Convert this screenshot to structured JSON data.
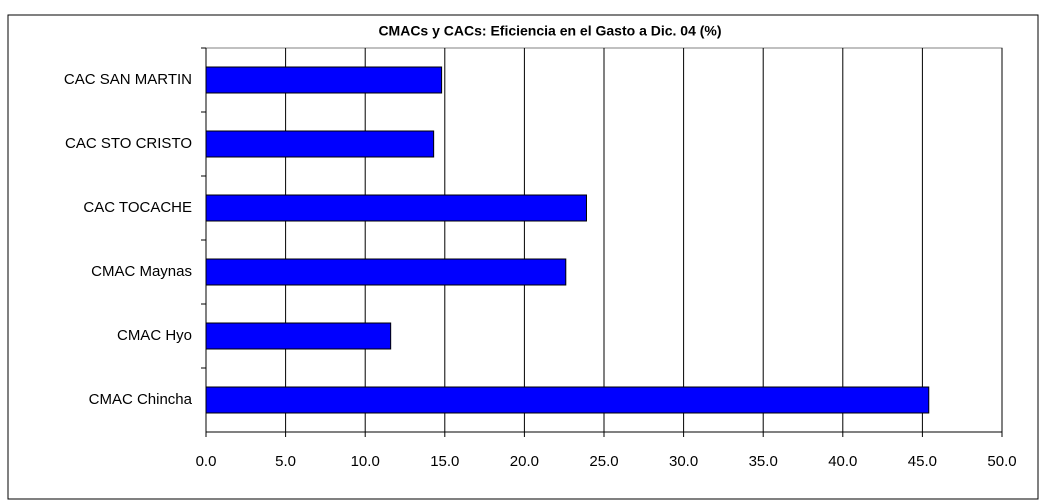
{
  "chart_data": {
    "type": "bar",
    "orientation": "horizontal",
    "title": "CMACs y CACs: Eficiencia en el Gasto a  Dic. 04 (%)",
    "categories": [
      "CAC SAN MARTIN",
      "CAC STO CRISTO",
      "CAC TOCACHE",
      "CMAC Maynas",
      "CMAC Hyo",
      "CMAC Chincha"
    ],
    "values": [
      14.8,
      14.3,
      23.9,
      22.6,
      11.6,
      45.4
    ],
    "color": "#0000ff",
    "xlim": [
      0,
      50
    ],
    "xticks": [
      {
        "value": 0,
        "label": "0.0"
      },
      {
        "value": 5,
        "label": "5.0"
      },
      {
        "value": 10,
        "label": "10.0"
      },
      {
        "value": 15,
        "label": "15.0"
      },
      {
        "value": 20,
        "label": "20.0"
      },
      {
        "value": 25,
        "label": "25.0"
      },
      {
        "value": 30,
        "label": "30.0"
      },
      {
        "value": 35,
        "label": "35.0"
      },
      {
        "value": 40,
        "label": "40.0"
      },
      {
        "value": 45,
        "label": "45.0"
      },
      {
        "value": 50,
        "label": "50.0"
      }
    ],
    "grid": true
  }
}
